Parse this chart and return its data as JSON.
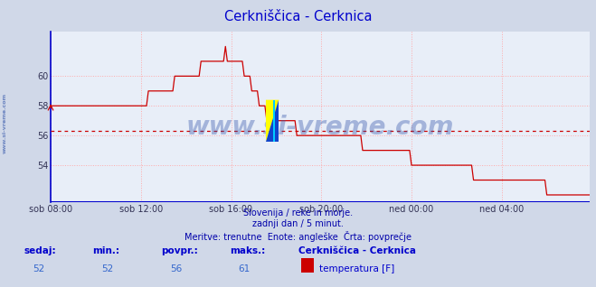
{
  "title": "Cerkniščica - Cerknica",
  "title_color": "#0000cc",
  "bg_color": "#d0d8e8",
  "plot_bg_color": "#e8eef8",
  "grid_color": "#ffaaaa",
  "line_color": "#cc0000",
  "avg_line_color": "#cc0000",
  "avg_value": 56.3,
  "y_min": 51.5,
  "y_max": 63.0,
  "yticks": [
    54,
    56,
    58,
    60
  ],
  "xtick_labels": [
    "sob 08:00",
    "sob 12:00",
    "sob 16:00",
    "sob 20:00",
    "ned 00:00",
    "ned 04:00"
  ],
  "xtick_positions": [
    0,
    48,
    96,
    144,
    192,
    240
  ],
  "total_points": 288,
  "footer_line1": "Slovenija / reke in morje.",
  "footer_line2": "zadnji dan / 5 minut.",
  "footer_line3": "Meritve: trenutne  Enote: angleške  Črta: povprečje",
  "footer_color": "#0000aa",
  "label_sedaj": "sedaj:",
  "label_min": "min.:",
  "label_povpr": "povpr.:",
  "label_maks": "maks.:",
  "val_sedaj": "52",
  "val_min": "52",
  "val_povpr": "56",
  "val_maks": "61",
  "legend_title": "Cerkniščica - Cerknica",
  "legend_color": "#cc0000",
  "legend_label": "temperatura [F]",
  "watermark": "www.si-vreme.com",
  "watermark_color": "#3355aa",
  "watermark_alpha": 0.38,
  "sidebar_text": "www.si-vreme.com",
  "sidebar_color": "#3355aa",
  "left_spine_color": "#0000cc",
  "bottom_spine_color": "#0000cc"
}
